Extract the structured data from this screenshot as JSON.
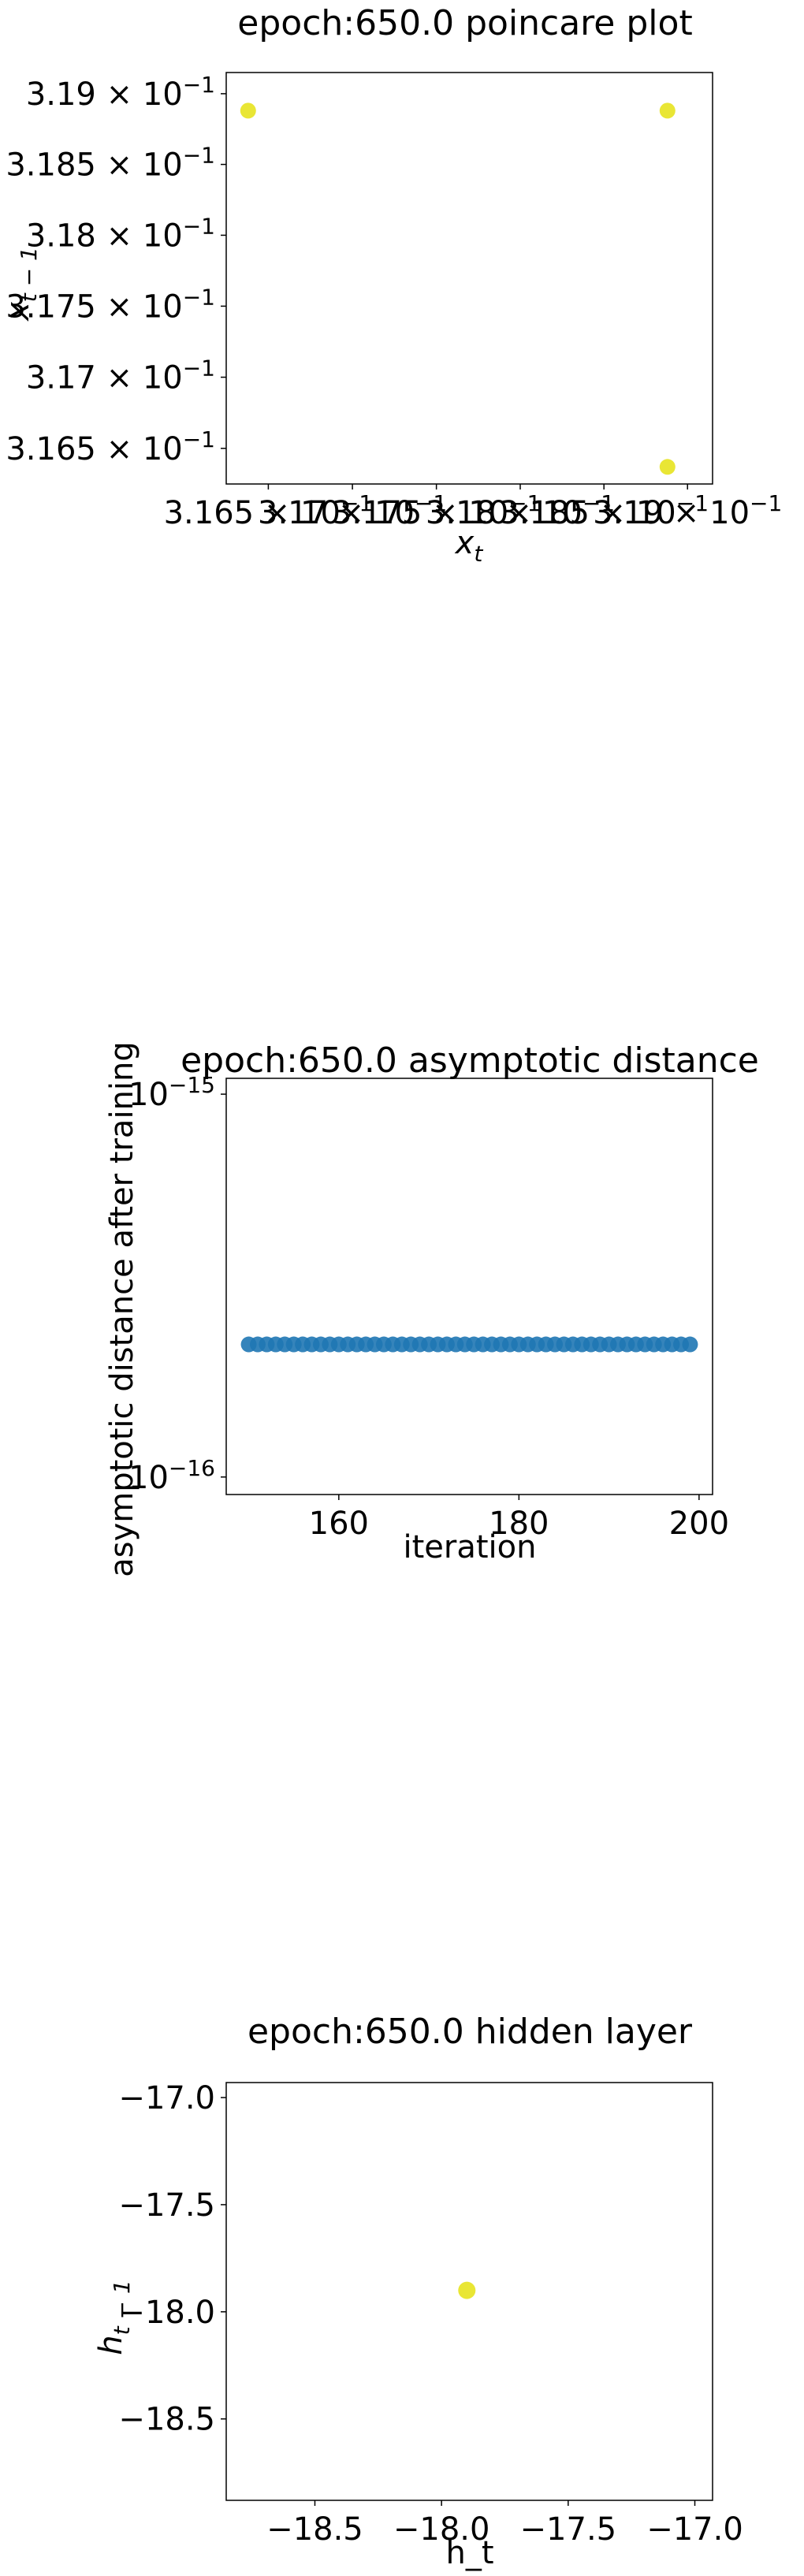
{
  "chart_data": [
    {
      "type": "scatter",
      "title": "epoch:650.0 poincare plot",
      "xlabel": "x_t",
      "ylabel": "x_{t-1}",
      "xscale": "log",
      "yscale": "log",
      "xlim": [
        0.31625,
        0.31915
      ],
      "ylim": [
        0.31625,
        0.31915
      ],
      "xticks": [
        0.3165,
        0.317,
        0.3175,
        0.318,
        0.3185,
        0.319
      ],
      "xtick_labels": [
        "3.165 × 10^−1",
        "3.17 × 10^−1",
        "3.175 × 10^−1",
        "3.18 × 10^−1",
        "3.185 × 10^−1",
        "3.19 × 10^−1"
      ],
      "yticks": [
        0.3165,
        0.317,
        0.3175,
        0.318,
        0.3185,
        0.319
      ],
      "ytick_labels": [
        "3.165 × 10^−1",
        "3.17 × 10^−1",
        "3.175 × 10^−1",
        "3.18 × 10^−1",
        "3.185 × 10^−1",
        "3.19 × 10^−1"
      ],
      "grid": false,
      "color": "#e7e31f",
      "points": [
        {
          "x": 0.31638,
          "y": 0.31888
        },
        {
          "x": 0.31888,
          "y": 0.31888
        },
        {
          "x": 0.31888,
          "y": 0.31637
        }
      ]
    },
    {
      "type": "scatter",
      "title": "epoch:650.0 asymptotic distance",
      "xlabel": "iteration",
      "ylabel": "asymptotic distance after training",
      "xscale": "linear",
      "yscale": "log",
      "xlim": [
        147.5,
        201.5
      ],
      "ylim": [
        9e-17,
        1.1e-15
      ],
      "xticks": [
        160,
        180,
        200
      ],
      "xtick_labels": [
        "160",
        "180",
        "200"
      ],
      "yticks": [
        1e-16,
        1e-15
      ],
      "ytick_labels": [
        "10^−16",
        "10^−15"
      ],
      "grid": false,
      "color": "#1f77b4",
      "x_start": 150,
      "x_end": 199,
      "y_value": 2.22e-16
    },
    {
      "type": "scatter",
      "title": "epoch:650.0 hidden layer",
      "xlabel": "h_t",
      "ylabel": "h_{t-1}",
      "xscale": "linear",
      "yscale": "linear",
      "xlim": [
        -18.85,
        -16.93
      ],
      "ylim": [
        -18.88,
        -16.93
      ],
      "xticks": [
        -18.5,
        -18.0,
        -17.5,
        -17.0
      ],
      "xtick_labels": [
        "−18.5",
        "−18.0",
        "−17.5",
        "−17.0"
      ],
      "yticks": [
        -18.5,
        -18.0,
        -17.5,
        -17.0
      ],
      "ytick_labels": [
        "−18.5",
        "−18.0",
        "−17.5",
        "−17.0"
      ],
      "grid": false,
      "color": "#e7e31f",
      "points": [
        {
          "x": -17.9,
          "y": -17.9
        }
      ]
    }
  ]
}
